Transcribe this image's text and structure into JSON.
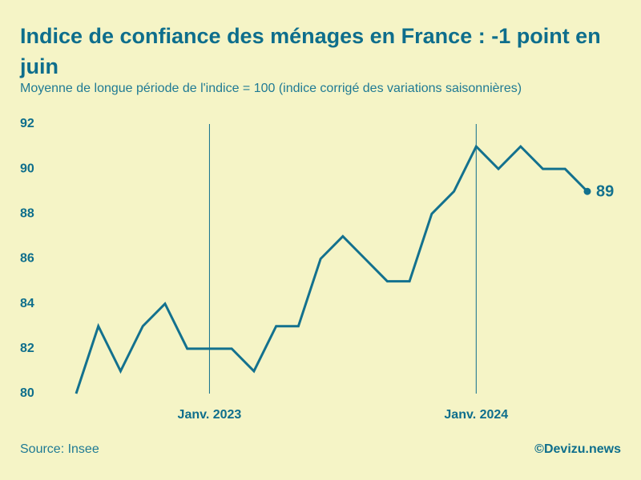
{
  "chart_data": {
    "type": "line",
    "title": "Indice de confiance des ménages en France : -1 point en juin",
    "subtitle": "Moyenne de longue période de l'indice = 100 (indice corrigé des variations saisonnières)",
    "source": "Source: Insee",
    "credit": "©Devizu.news",
    "categories": [
      null,
      null,
      null,
      null,
      null,
      null,
      "Janv. 2023",
      null,
      null,
      null,
      null,
      null,
      null,
      null,
      null,
      null,
      null,
      null,
      "Janv. 2024",
      null,
      null,
      null,
      null,
      null
    ],
    "series": [
      {
        "name": "Indice",
        "color": "#13718e",
        "values": [
          80,
          83,
          81,
          83,
          84,
          82,
          82,
          82,
          81,
          83,
          83,
          86,
          87,
          86,
          85,
          85,
          88,
          89,
          91,
          90,
          91,
          90,
          90,
          89
        ]
      }
    ],
    "ylim": [
      80,
      92
    ],
    "yticks": [
      80,
      82,
      84,
      86,
      88,
      90,
      92
    ],
    "grid": false
  }
}
